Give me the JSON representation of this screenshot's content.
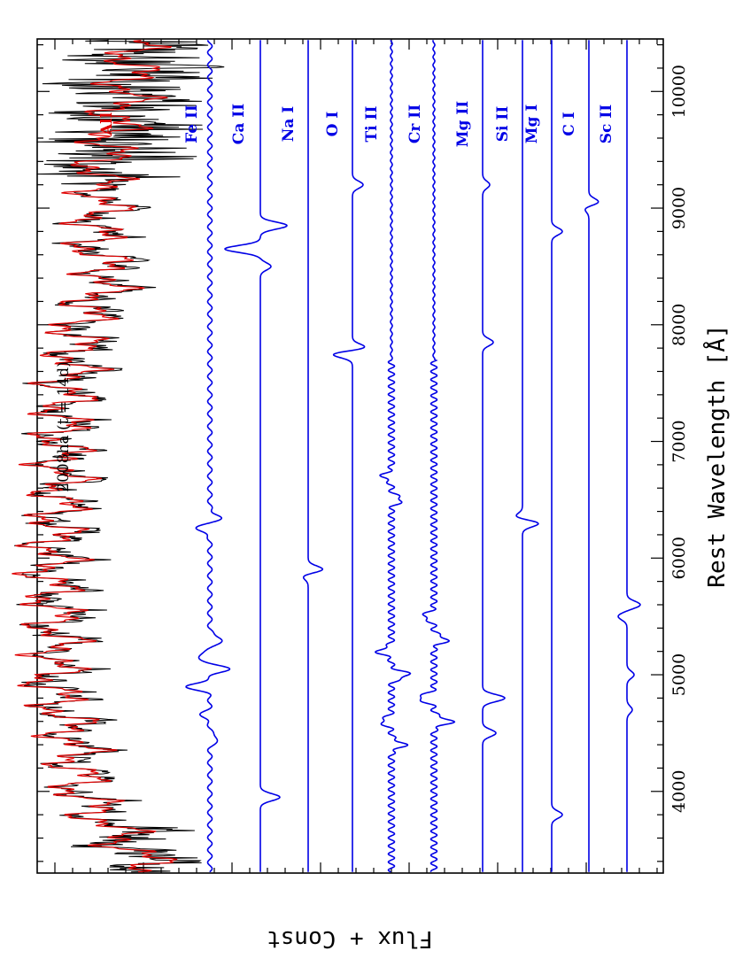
{
  "chart_data": {
    "type": "line",
    "orientation": "rotated-90-clockwise",
    "title": "2008ha (t = 14d)",
    "xlabel": "Rest Wavelength [Å]",
    "ylabel": "Flux + Const",
    "xlim": [
      3300,
      10450
    ],
    "xticks": [
      4000,
      5000,
      6000,
      7000,
      8000,
      9000,
      10000
    ],
    "xtick_labels": [
      "4000",
      "5000",
      "6000",
      "7000",
      "8000",
      "9000",
      "10000"
    ],
    "grid": false,
    "legend": "none (series labelled inline)",
    "series": [
      {
        "name": "All",
        "label_color": "#e00000",
        "role": "observed+model",
        "x": [
          3350,
          3500,
          3800,
          4000,
          4400,
          4700,
          4900,
          5200,
          5500,
          5900,
          6300,
          6700,
          7000,
          7400,
          7700,
          8000,
          8400,
          8700,
          9100,
          9300,
          9700,
          10000,
          10300
        ],
        "y": [
          0.1,
          0.25,
          0.55,
          0.7,
          0.75,
          0.85,
          0.95,
          0.88,
          0.92,
          0.95,
          0.9,
          0.85,
          0.87,
          0.82,
          0.75,
          0.72,
          0.45,
          0.6,
          0.5,
          0.55,
          0.4,
          0.3,
          0.25
        ]
      },
      {
        "name": "Fe II",
        "color": "#0000e6",
        "baseline": 1
      },
      {
        "name": "Ca II",
        "color": "#0000e6",
        "baseline": 2
      },
      {
        "name": "Na I",
        "color": "#0000e6",
        "baseline": 3
      },
      {
        "name": "O I",
        "color": "#0000e6",
        "baseline": 4
      },
      {
        "name": "Ti II",
        "color": "#0000e6",
        "baseline": 5
      },
      {
        "name": "Cr II",
        "color": "#0000e6",
        "baseline": 6
      },
      {
        "name": "Mg II",
        "color": "#0000e6",
        "baseline": 7
      },
      {
        "name": "Si II",
        "color": "#0000e6",
        "baseline": 8
      },
      {
        "name": "Mg I",
        "color": "#0000e6",
        "baseline": 9
      },
      {
        "name": "C I",
        "color": "#0000e6",
        "baseline": 10
      },
      {
        "name": "Sc II",
        "color": "#0000e6",
        "baseline": 11
      }
    ],
    "colors": {
      "observed": "#000000",
      "model": "#e00000",
      "ions": "#0000e6",
      "axis": "#000000"
    }
  }
}
